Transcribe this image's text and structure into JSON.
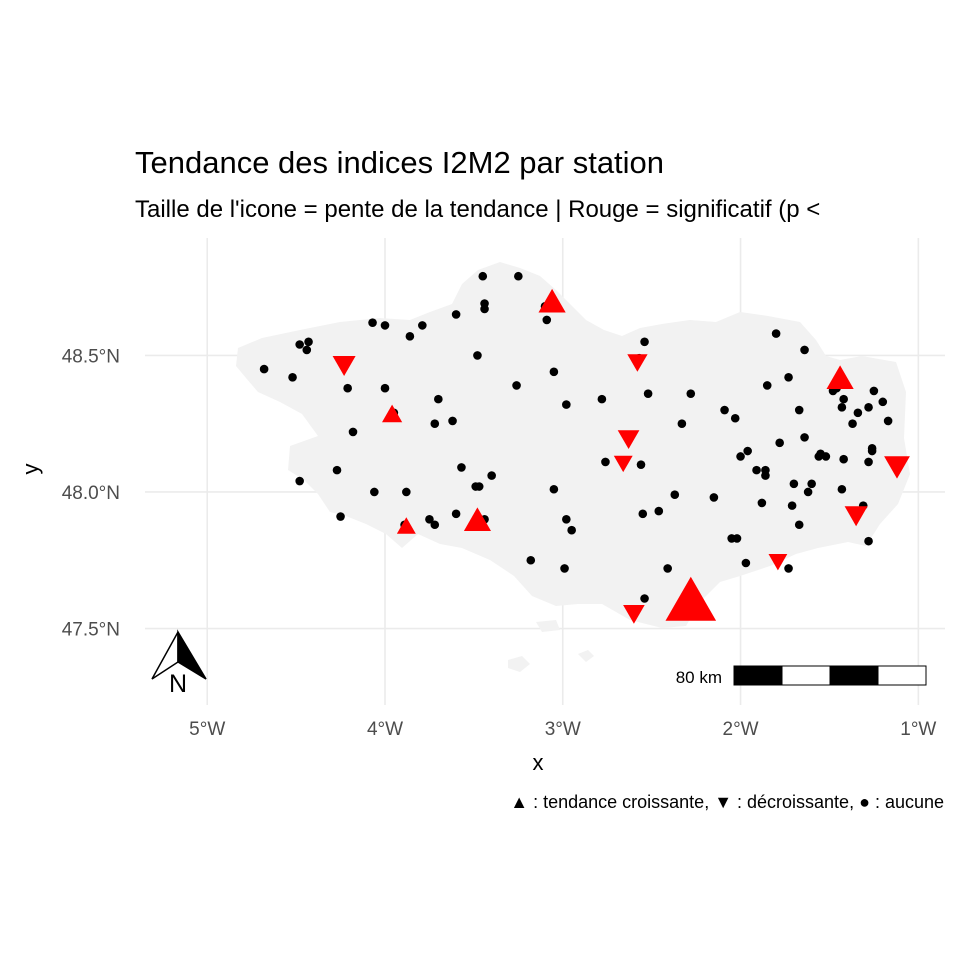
{
  "title": "Tendance des indices I2M2 par station",
  "subtitle": "Taille de l'icone = pente de la tendance | Rouge = significatif (p <",
  "caption": "▲ : tendance croissante, ▼ : décroissante, ● : aucune",
  "xlabel": "x",
  "ylabel": "y",
  "north_label": "N",
  "scale_label": "80 km",
  "colors": {
    "significant": "#ff0000",
    "none": "#000000",
    "land": "#f2f2f2",
    "grid": "#ebebeb"
  },
  "chart_data": {
    "type": "scatter",
    "xlim": [
      -5.35,
      -0.85
    ],
    "ylim": [
      47.22,
      48.93
    ],
    "x_ticks": [
      -5,
      -4,
      -3,
      -2,
      -1
    ],
    "x_tick_labels": [
      "5°W",
      "4°W",
      "3°W",
      "2°W",
      "1°W"
    ],
    "y_ticks": [
      47.5,
      48.0,
      48.5
    ],
    "y_tick_labels": [
      "47.5°N",
      "48.0°N",
      "48.5°N"
    ],
    "significant_stations": [
      {
        "lon": -2.28,
        "lat": 47.59,
        "trend": "up",
        "size": 3.0
      },
      {
        "lon": -1.44,
        "lat": 48.41,
        "trend": "up",
        "size": 1.3
      },
      {
        "lon": -3.48,
        "lat": 47.89,
        "trend": "up",
        "size": 1.3
      },
      {
        "lon": -3.06,
        "lat": 48.69,
        "trend": "up",
        "size": 1.3
      },
      {
        "lon": -3.96,
        "lat": 48.28,
        "trend": "up",
        "size": 0.8
      },
      {
        "lon": -3.88,
        "lat": 47.87,
        "trend": "up",
        "size": 0.7
      },
      {
        "lon": -2.6,
        "lat": 47.56,
        "trend": "down",
        "size": 0.9
      },
      {
        "lon": -4.23,
        "lat": 48.47,
        "trend": "down",
        "size": 1.0
      },
      {
        "lon": -2.63,
        "lat": 48.2,
        "trend": "down",
        "size": 0.9
      },
      {
        "lon": -2.58,
        "lat": 48.48,
        "trend": "down",
        "size": 0.8
      },
      {
        "lon": -1.35,
        "lat": 47.92,
        "trend": "down",
        "size": 1.0
      },
      {
        "lon": -1.12,
        "lat": 48.1,
        "trend": "down",
        "size": 1.2
      },
      {
        "lon": -1.79,
        "lat": 47.75,
        "trend": "down",
        "size": 0.7
      },
      {
        "lon": -2.66,
        "lat": 48.11,
        "trend": "down",
        "size": 0.7
      }
    ],
    "no_trend_stations": [
      [
        -4.68,
        48.45
      ],
      [
        -4.52,
        48.42
      ],
      [
        -4.48,
        48.54
      ],
      [
        -4.43,
        48.55
      ],
      [
        -4.44,
        48.52
      ],
      [
        -4.21,
        48.38
      ],
      [
        -4.18,
        48.22
      ],
      [
        -4.48,
        48.04
      ],
      [
        -4.27,
        48.08
      ],
      [
        -4.25,
        47.91
      ],
      [
        -4.07,
        48.62
      ],
      [
        -4.0,
        48.61
      ],
      [
        -4.0,
        48.38
      ],
      [
        -3.95,
        48.29
      ],
      [
        -3.86,
        48.57
      ],
      [
        -3.79,
        48.61
      ],
      [
        -3.7,
        48.34
      ],
      [
        -3.6,
        48.65
      ],
      [
        -3.62,
        48.26
      ],
      [
        -3.72,
        48.25
      ],
      [
        -3.45,
        48.79
      ],
      [
        -3.44,
        48.69
      ],
      [
        -3.44,
        48.67
      ],
      [
        -3.25,
        48.79
      ],
      [
        -3.1,
        48.68
      ],
      [
        -3.09,
        48.63
      ],
      [
        -3.48,
        48.5
      ],
      [
        -3.26,
        48.39
      ],
      [
        -3.05,
        48.44
      ],
      [
        -2.98,
        48.32
      ],
      [
        -3.57,
        48.09
      ],
      [
        -3.49,
        48.02
      ],
      [
        -3.47,
        48.02
      ],
      [
        -3.4,
        48.06
      ],
      [
        -3.44,
        47.9
      ],
      [
        -3.6,
        47.92
      ],
      [
        -3.72,
        47.88
      ],
      [
        -3.75,
        47.9
      ],
      [
        -3.89,
        47.88
      ],
      [
        -3.88,
        48.0
      ],
      [
        -4.06,
        48.0
      ],
      [
        -3.05,
        48.01
      ],
      [
        -2.98,
        47.9
      ],
      [
        -2.95,
        47.86
      ],
      [
        -2.99,
        47.72
      ],
      [
        -3.18,
        47.75
      ],
      [
        -2.54,
        48.55
      ],
      [
        -2.57,
        48.49
      ],
      [
        -2.52,
        48.36
      ],
      [
        -2.78,
        48.34
      ],
      [
        -2.76,
        48.11
      ],
      [
        -2.56,
        48.1
      ],
      [
        -2.46,
        47.93
      ],
      [
        -2.55,
        47.92
      ],
      [
        -2.41,
        47.72
      ],
      [
        -2.28,
        48.36
      ],
      [
        -2.33,
        48.25
      ],
      [
        -2.37,
        47.99
      ],
      [
        -2.54,
        47.61
      ],
      [
        -2.15,
        47.98
      ],
      [
        -2.09,
        48.3
      ],
      [
        -2.03,
        48.27
      ],
      [
        -2.0,
        48.13
      ],
      [
        -1.96,
        48.15
      ],
      [
        -1.91,
        48.08
      ],
      [
        -1.86,
        48.08
      ],
      [
        -1.86,
        48.06
      ],
      [
        -1.88,
        47.96
      ],
      [
        -2.05,
        47.83
      ],
      [
        -2.02,
        47.83
      ],
      [
        -1.97,
        47.74
      ],
      [
        -1.85,
        48.39
      ],
      [
        -1.8,
        48.58
      ],
      [
        -1.73,
        48.42
      ],
      [
        -1.64,
        48.52
      ],
      [
        -1.67,
        48.3
      ],
      [
        -1.78,
        48.18
      ],
      [
        -1.7,
        48.03
      ],
      [
        -1.62,
        48.0
      ],
      [
        -1.6,
        48.03
      ],
      [
        -1.64,
        48.2
      ],
      [
        -1.56,
        48.13
      ],
      [
        -1.55,
        48.14
      ],
      [
        -1.52,
        48.13
      ],
      [
        -1.46,
        48.38
      ],
      [
        -1.42,
        48.34
      ],
      [
        -1.43,
        48.31
      ],
      [
        -1.34,
        48.29
      ],
      [
        -1.28,
        48.31
      ],
      [
        -1.25,
        48.37
      ],
      [
        -1.2,
        48.33
      ],
      [
        -1.17,
        48.26
      ],
      [
        -1.28,
        48.11
      ],
      [
        -1.26,
        48.15
      ],
      [
        -1.26,
        48.16
      ],
      [
        -1.37,
        48.25
      ],
      [
        -1.48,
        48.37
      ],
      [
        -1.42,
        48.12
      ],
      [
        -1.43,
        48.01
      ],
      [
        -1.71,
        47.95
      ],
      [
        -1.73,
        47.72
      ],
      [
        -1.31,
        47.95
      ],
      [
        -1.28,
        47.82
      ],
      [
        -1.67,
        47.88
      ]
    ]
  }
}
